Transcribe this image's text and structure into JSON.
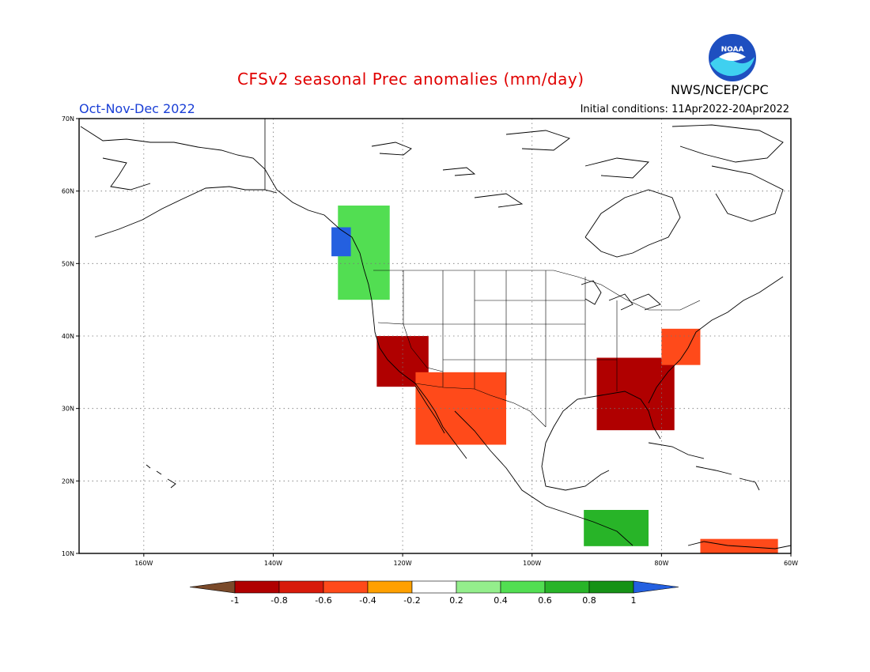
{
  "header": {
    "title": "CFSv2 seasonal Prec anomalies (mm/day)",
    "agency": "NWS/NCEP/CPC",
    "season": "Oct-Nov-Dec 2022",
    "initial_conditions": "Initial conditions: 11Apr2022-20Apr2022",
    "logo_text": "NOAA"
  },
  "map": {
    "lon_range": [
      -170,
      -60
    ],
    "lat_range": [
      10,
      70
    ],
    "lon_ticks": [
      {
        "value": -160,
        "label": "160W"
      },
      {
        "value": -140,
        "label": "140W"
      },
      {
        "value": -120,
        "label": "120W"
      },
      {
        "value": -100,
        "label": "100W"
      },
      {
        "value": -80,
        "label": "80W"
      },
      {
        "value": -60,
        "label": "60W"
      }
    ],
    "lat_ticks": [
      {
        "value": 10,
        "label": "10N"
      },
      {
        "value": 20,
        "label": "20N"
      },
      {
        "value": 30,
        "label": "30N"
      },
      {
        "value": 40,
        "label": "40N"
      },
      {
        "value": 50,
        "label": "50N"
      },
      {
        "value": 60,
        "label": "60N"
      },
      {
        "value": 70,
        "label": "70N"
      }
    ],
    "grid": "dotted",
    "land_color": "#ffffff",
    "coast_color": "#000000"
  },
  "colorbar": {
    "levels": [
      "-1",
      "-0.8",
      "-0.6",
      "-0.4",
      "-0.2",
      "0.2",
      "0.4",
      "0.6",
      "0.8",
      "1"
    ],
    "colors": [
      "#7a4a2a",
      "#b00000",
      "#d81a0a",
      "#ff4a1a",
      "#ffa000",
      "#ffffff",
      "#94ee8c",
      "#52de52",
      "#28b428",
      "#169216",
      "#2460e0"
    ]
  },
  "anomaly_regions": [
    {
      "name": "pacific-nw-wet",
      "category": "0.4",
      "lon": [
        -130,
        -122
      ],
      "lat": [
        45,
        58
      ]
    },
    {
      "name": "bc-coast-very-wet",
      "category": "1",
      "lon": [
        -131,
        -128
      ],
      "lat": [
        51,
        55
      ]
    },
    {
      "name": "california-dry",
      "category": "-0.8",
      "lon": [
        -124,
        -116
      ],
      "lat": [
        33,
        40
      ]
    },
    {
      "name": "southwest-dry",
      "category": "-0.4",
      "lon": [
        -118,
        -104
      ],
      "lat": [
        25,
        35
      ]
    },
    {
      "name": "southeast-dry",
      "category": "-0.8",
      "lon": [
        -90,
        -78
      ],
      "lat": [
        27,
        37
      ]
    },
    {
      "name": "mid-atlantic-dry",
      "category": "-0.4",
      "lon": [
        -80,
        -74
      ],
      "lat": [
        36,
        41
      ]
    },
    {
      "name": "central-america-wet",
      "category": "0.6",
      "lon": [
        -92,
        -82
      ],
      "lat": [
        11,
        16
      ]
    },
    {
      "name": "caribbean-dry",
      "category": "-0.4",
      "lon": [
        -74,
        -62
      ],
      "lat": [
        10,
        12
      ]
    }
  ]
}
